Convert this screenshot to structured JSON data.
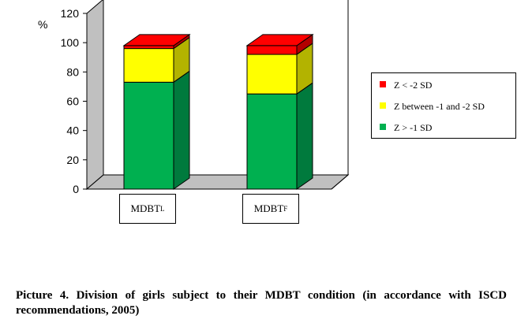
{
  "chart_data": {
    "type": "bar",
    "stacked": true,
    "three_d": true,
    "ylabel": "%",
    "ylim": [
      0,
      120
    ],
    "yticks": [
      0,
      20,
      40,
      60,
      80,
      100,
      120
    ],
    "categories": [
      {
        "main": "MDBT",
        "sub": "L"
      },
      {
        "main": "MDBT",
        "sub": "F"
      }
    ],
    "series": [
      {
        "name": "Z > -1 SD",
        "color": "#00b050",
        "values": [
          73,
          65
        ]
      },
      {
        "name": "Z between -1 and -2 SD",
        "color": "#ffff00",
        "values": [
          23,
          27
        ]
      },
      {
        "name": "Z < -2 SD",
        "color": "#ff0000",
        "values": [
          2,
          6
        ]
      }
    ],
    "legend_order": [
      "Z < -2 SD",
      "Z between -1 and -2 SD",
      "Z > -1 SD"
    ],
    "legend_position": "right",
    "grid": false,
    "wall_color": "#c0c0c0"
  },
  "caption": "Picture 4. Division of girls subject to their MDBT condition (in accordance with ISCD recommendations, 2005)"
}
